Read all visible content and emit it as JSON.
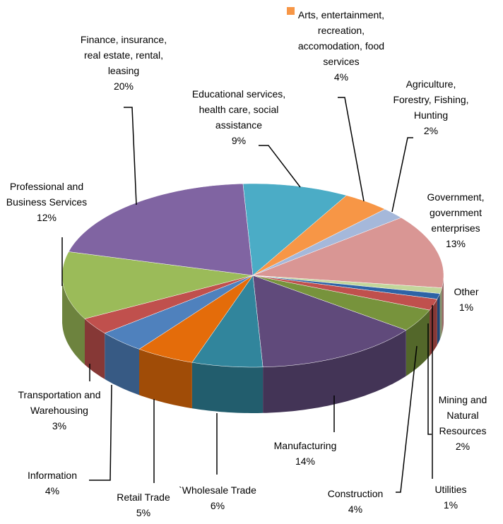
{
  "chart_data": {
    "type": "pie",
    "categories": [
      "Educational services, health care, social assistance",
      "Arts, entertainment, recreation, accomodation, food services",
      "Agriculture, Forestry, Fishing, Hunting",
      "Government, government enterprises",
      "Other",
      "Utilities",
      "Mining and Natural Resources",
      "Construction",
      "Manufacturing",
      "`Wholesale Trade",
      "Retail Trade",
      "Information",
      "Transportation and Warehousing",
      "Professional and Business Services",
      "Finance, insurance, real estate, rental, leasing"
    ],
    "values": [
      9,
      4,
      2,
      13,
      1,
      1,
      2,
      4,
      14,
      6,
      5,
      4,
      3,
      12,
      20
    ],
    "value_labels": [
      "9%",
      "4%",
      "2%",
      "13%",
      "1%",
      "1%",
      "2%",
      "4%",
      "14%",
      "6%",
      "5%",
      "4%",
      "3%",
      "12%",
      "20%"
    ],
    "colors": [
      "#4bacc6",
      "#f79646",
      "#a5b8da",
      "#d99694",
      "#c3d69b",
      "#2e63a6",
      "#c0504d",
      "#77933c",
      "#604a7b",
      "#31859c",
      "#e46c0a",
      "#4f81bd",
      "#c0504d",
      "#9bbb59",
      "#8064a2"
    ]
  }
}
